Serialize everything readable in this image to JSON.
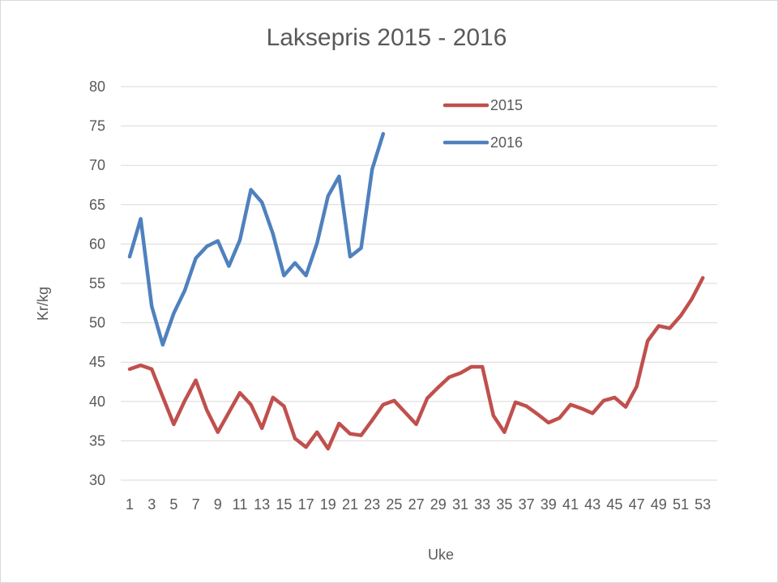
{
  "chart_data": {
    "type": "line",
    "title": "Laksepris 2015 - 2016",
    "xlabel": "Uke",
    "ylabel": "Kr/kg",
    "ylim": [
      30,
      80
    ],
    "yticks": [
      "30",
      "35",
      "40",
      "45",
      "50",
      "55",
      "60",
      "65",
      "70",
      "75",
      "80"
    ],
    "xlim": [
      1,
      53
    ],
    "xtick_labels": [
      "1",
      "3",
      "5",
      "7",
      "9",
      "11",
      "13",
      "15",
      "17",
      "19",
      "21",
      "23",
      "25",
      "27",
      "29",
      "31",
      "33",
      "35",
      "37",
      "39",
      "41",
      "43",
      "45",
      "47",
      "49",
      "51",
      "53"
    ],
    "grid": true,
    "legend_position": "top-right",
    "series": [
      {
        "name": "2015",
        "color": "#c0504d",
        "values": [
          44.1,
          44.6,
          44.1,
          40.6,
          37.1,
          40.1,
          42.7,
          38.9,
          36.1,
          38.6,
          41.1,
          39.6,
          36.6,
          40.5,
          39.4,
          35.3,
          34.2,
          36.1,
          34.0,
          37.2,
          35.9,
          35.7,
          37.6,
          39.6,
          40.1,
          38.6,
          37.1,
          40.4,
          41.8,
          43.1,
          43.6,
          44.4,
          44.4,
          38.2,
          36.1,
          39.9,
          39.4,
          38.4,
          37.3,
          37.9,
          39.6,
          39.1,
          38.5,
          40.1,
          40.5,
          39.3,
          41.9,
          47.7,
          49.6,
          49.3,
          50.9,
          53.0,
          55.7
        ]
      },
      {
        "name": "2016",
        "color": "#4f81bd",
        "values": [
          58.4,
          63.2,
          52.1,
          47.2,
          51.2,
          54.1,
          58.2,
          59.7,
          60.4,
          57.2,
          60.5,
          66.9,
          65.3,
          61.3,
          56.0,
          57.6,
          56.0,
          60.1,
          66.1,
          68.6,
          58.4,
          59.5,
          69.5,
          74.0
        ]
      }
    ]
  }
}
